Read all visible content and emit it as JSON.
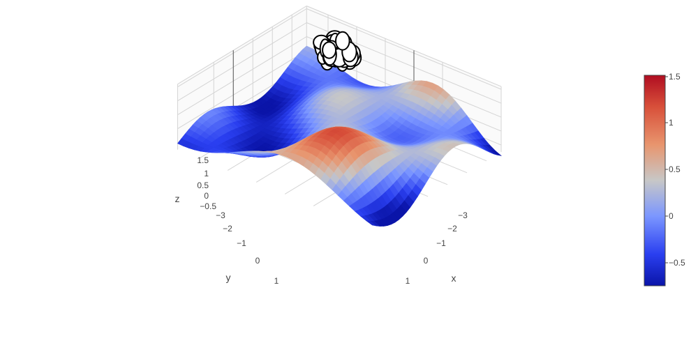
{
  "chart_data": {
    "type": "surface",
    "x": [
      -3,
      -2,
      -1,
      0,
      1
    ],
    "y": [
      -3,
      -2,
      -1,
      0,
      1
    ],
    "z_ticks": [
      -0.5,
      0,
      0.5,
      1,
      1.5
    ],
    "xlabel": "x",
    "ylabel": "y",
    "zlabel": "z",
    "colorscale": "coolwarm",
    "colors": {
      "low": "#0a14a8",
      "mid": "#c7c7c7",
      "high": "#b00d21"
    },
    "colorbar": {
      "range": [
        -0.75,
        1.5
      ],
      "ticks": [
        -0.5,
        0,
        0.5,
        1,
        1.5
      ]
    },
    "markers": {
      "mode": "markers",
      "marker_color": "#000000",
      "marker_fill": "#ffffff"
    },
    "grid": true
  },
  "labels": {
    "x_ticks": [
      "−3",
      "−2",
      "−1",
      "0",
      "1"
    ],
    "y_ticks": [
      "−3",
      "−2",
      "−1",
      "0",
      "1"
    ],
    "z_ticks": [
      "−0.5",
      "0",
      "0.5",
      "1",
      "1.5"
    ],
    "colorbar_ticks": [
      "−0.5",
      "0",
      "0.5",
      "1",
      "1.5"
    ]
  }
}
